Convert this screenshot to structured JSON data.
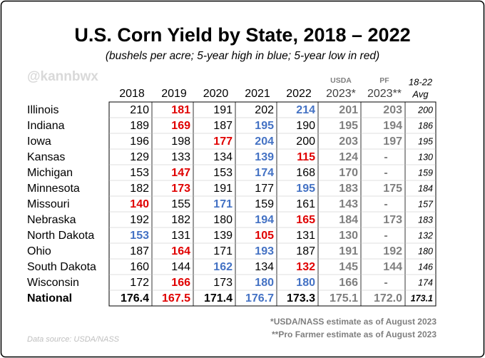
{
  "title": "U.S. Corn Yield by State, 2018 – 2022",
  "subtitle": "(bushels per acre; 5-year high in blue; 5-year low in red)",
  "watermark": "@kannbwx",
  "table": {
    "columns": [
      {
        "lines": [
          "2018"
        ]
      },
      {
        "lines": [
          "2019"
        ]
      },
      {
        "lines": [
          "2020"
        ]
      },
      {
        "lines": [
          "2021"
        ]
      },
      {
        "lines": [
          "2022"
        ]
      },
      {
        "note": "USDA",
        "lines": [
          "2023*"
        ]
      },
      {
        "note": "PF",
        "lines": [
          "2023**"
        ]
      },
      {
        "lines": [
          "18-22",
          "Avg"
        ]
      }
    ],
    "rows": [
      {
        "label": "Illinois",
        "values": [
          "210",
          "181",
          "191",
          "202",
          "214",
          "201",
          "203",
          "200"
        ]
      },
      {
        "label": "Indiana",
        "values": [
          "189",
          "169",
          "187",
          "195",
          "190",
          "195",
          "194",
          "186"
        ]
      },
      {
        "label": "Iowa",
        "values": [
          "196",
          "198",
          "177",
          "204",
          "200",
          "203",
          "197",
          "195"
        ]
      },
      {
        "label": "Kansas",
        "values": [
          "129",
          "133",
          "134",
          "139",
          "115",
          "124",
          "-",
          "130"
        ]
      },
      {
        "label": "Michigan",
        "values": [
          "153",
          "147",
          "153",
          "174",
          "168",
          "170",
          "-",
          "159"
        ]
      },
      {
        "label": "Minnesota",
        "values": [
          "182",
          "173",
          "191",
          "177",
          "195",
          "183",
          "175",
          "184"
        ]
      },
      {
        "label": "Missouri",
        "values": [
          "140",
          "155",
          "171",
          "159",
          "161",
          "143",
          "-",
          "157"
        ]
      },
      {
        "label": "Nebraska",
        "values": [
          "192",
          "182",
          "180",
          "194",
          "165",
          "184",
          "173",
          "183"
        ]
      },
      {
        "label": "North Dakota",
        "values": [
          "153",
          "131",
          "139",
          "105",
          "131",
          "130",
          "-",
          "132"
        ]
      },
      {
        "label": "Ohio",
        "values": [
          "187",
          "164",
          "171",
          "193",
          "187",
          "191",
          "192",
          "180"
        ]
      },
      {
        "label": "South Dakota",
        "values": [
          "160",
          "144",
          "162",
          "134",
          "132",
          "145",
          "144",
          "146"
        ]
      },
      {
        "label": "Wisconsin",
        "values": [
          "172",
          "166",
          "173",
          "180",
          "180",
          "166",
          "-",
          "174"
        ]
      },
      {
        "label": "National",
        "values": [
          "176.4",
          "167.5",
          "171.4",
          "176.7",
          "173.3",
          "175.1",
          "172.0",
          "173.1"
        ]
      }
    ]
  },
  "footnotes": [
    "*USDA/NASS estimate as of August 2023",
    "**Pro Farmer estimate as of August 2023"
  ],
  "source": "Data source: USDA/NASS"
}
